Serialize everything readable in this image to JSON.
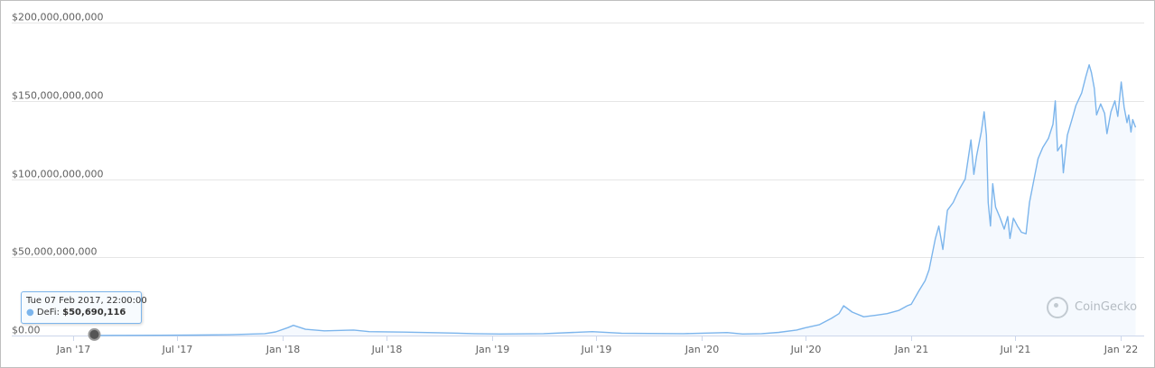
{
  "chart_data": {
    "type": "area",
    "title": "",
    "xlabel": "",
    "ylabel": "",
    "x_ticks": [
      "Jan '17",
      "Jul '17",
      "Jan '18",
      "Jul '18",
      "Jan '19",
      "Jul '19",
      "Jan '20",
      "Jul '20",
      "Jan '21",
      "Jul '21",
      "Jan '22"
    ],
    "y_ticks": [
      "$0.00",
      "$50,000,000,000",
      "$100,000,000,000",
      "$150,000,000,000",
      "$200,000,000,000"
    ],
    "ylim": [
      0,
      200000000000
    ],
    "xlim": [
      "2016-12-15",
      "2022-02-01"
    ],
    "grid": true,
    "legend": "none",
    "colors": {
      "line": "#7cb5ec",
      "grid": "#e6e6e6",
      "axis": "#ccd6eb"
    },
    "series": [
      {
        "x": [
          "2017-02-07",
          "2017-04-01",
          "2017-06-01",
          "2017-08-01",
          "2017-10-01",
          "2017-12-01",
          "2017-12-20",
          "2018-01-10",
          "2018-01-20",
          "2018-02-10",
          "2018-03-15",
          "2018-05-05",
          "2018-06-01",
          "2018-08-01",
          "2018-10-01",
          "2018-12-01",
          "2019-01-15",
          "2019-04-01",
          "2019-06-25",
          "2019-08-15",
          "2019-10-01",
          "2019-12-01",
          "2020-02-15",
          "2020-03-13",
          "2020-04-15",
          "2020-05-15",
          "2020-06-15",
          "2020-07-01",
          "2020-07-25",
          "2020-08-15",
          "2020-08-28",
          "2020-09-05",
          "2020-09-20",
          "2020-10-10",
          "2020-11-01",
          "2020-11-20",
          "2020-12-10",
          "2020-12-25",
          "2021-01-01",
          "2021-01-15",
          "2021-01-25",
          "2021-02-01",
          "2021-02-12",
          "2021-02-18",
          "2021-02-25",
          "2021-03-05",
          "2021-03-15",
          "2021-03-25",
          "2021-04-05",
          "2021-04-15",
          "2021-04-20",
          "2021-04-25",
          "2021-05-03",
          "2021-05-08",
          "2021-05-12",
          "2021-05-15",
          "2021-05-19",
          "2021-05-23",
          "2021-05-28",
          "2021-06-05",
          "2021-06-12",
          "2021-06-18",
          "2021-06-22",
          "2021-06-28",
          "2021-07-05",
          "2021-07-12",
          "2021-07-20",
          "2021-07-26",
          "2021-08-02",
          "2021-08-10",
          "2021-08-18",
          "2021-08-28",
          "2021-09-05",
          "2021-09-09",
          "2021-09-13",
          "2021-09-20",
          "2021-09-23",
          "2021-09-30",
          "2021-10-08",
          "2021-10-15",
          "2021-10-25",
          "2021-11-01",
          "2021-11-07",
          "2021-11-11",
          "2021-11-16",
          "2021-11-20",
          "2021-11-27",
          "2021-12-04",
          "2021-12-08",
          "2021-12-15",
          "2021-12-22",
          "2021-12-27",
          "2022-01-02",
          "2022-01-07",
          "2022-01-12",
          "2022-01-15",
          "2022-01-19",
          "2022-01-22",
          "2022-01-27"
        ],
        "values": [
          50690116,
          100000000,
          150000000,
          300000000,
          500000000,
          1200000000,
          2300000000,
          5000000000,
          6500000000,
          4000000000,
          3000000000,
          3500000000,
          2500000000,
          2200000000,
          1800000000,
          1200000000,
          1000000000,
          1200000000,
          2500000000,
          1500000000,
          1300000000,
          1200000000,
          1900000000,
          1000000000,
          1200000000,
          2000000000,
          3500000000,
          5000000000,
          7000000000,
          11000000000,
          14000000000,
          19000000000,
          15000000000,
          12000000000,
          13000000000,
          14000000000,
          16000000000,
          19000000000,
          20000000000,
          29000000000,
          35000000000,
          42000000000,
          62000000000,
          70000000000,
          55000000000,
          80000000000,
          85000000000,
          93000000000,
          100000000000,
          125000000000,
          103000000000,
          115000000000,
          130000000000,
          143000000000,
          128000000000,
          85000000000,
          70000000000,
          97000000000,
          82000000000,
          75000000000,
          68000000000,
          76000000000,
          62000000000,
          75000000000,
          70000000000,
          66000000000,
          65000000000,
          85000000000,
          98000000000,
          113000000000,
          120000000000,
          126000000000,
          135000000000,
          150000000000,
          118000000000,
          122000000000,
          104000000000,
          128000000000,
          138000000000,
          147000000000,
          155000000000,
          165000000000,
          173000000000,
          168000000000,
          158000000000,
          141000000000,
          148000000000,
          142000000000,
          129000000000,
          143000000000,
          150000000000,
          140000000000,
          162000000000,
          146000000000,
          136000000000,
          141000000000,
          130000000000,
          138000000000,
          133000000000
        ]
      }
    ]
  },
  "tooltip": {
    "date": "Tue 07 Feb 2017, 22:00:00",
    "marker": "●",
    "label": "DeFi:",
    "value": "$50,690,116"
  },
  "watermark": {
    "text": "CoinGecko",
    "icon": "coingecko-logo-icon"
  }
}
